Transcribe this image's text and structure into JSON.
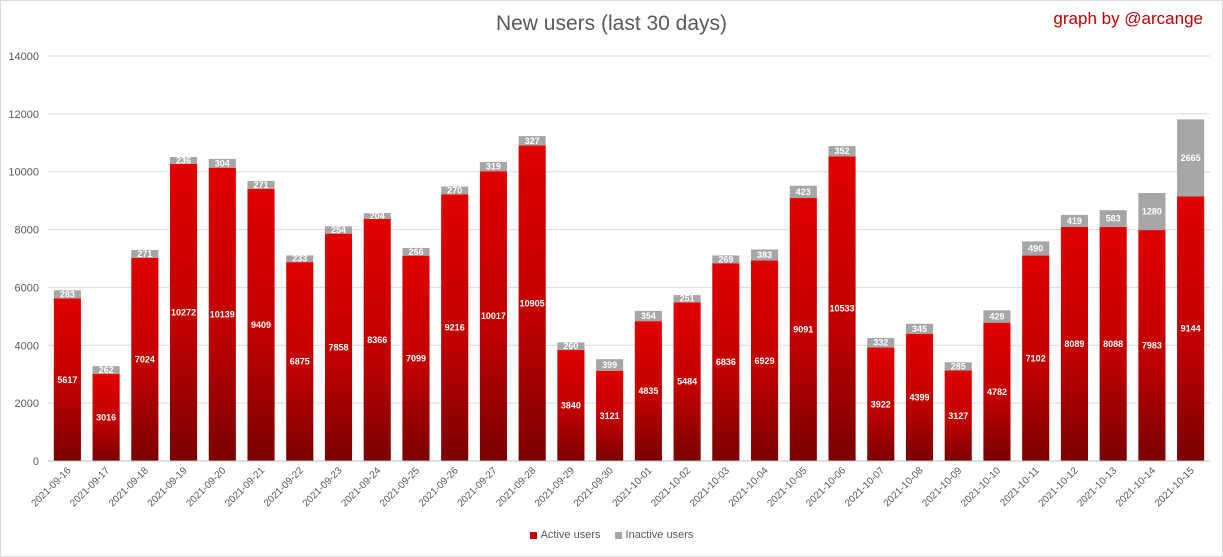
{
  "chart_data": {
    "type": "bar",
    "stacked": true,
    "title": "New users (last 30 days)",
    "credit": "graph by @arcange",
    "xlabel": "",
    "ylabel": "",
    "ylim": [
      0,
      14000
    ],
    "yticks": [
      0,
      2000,
      4000,
      6000,
      8000,
      10000,
      12000,
      14000
    ],
    "grid": true,
    "legend_position": "bottom",
    "categories": [
      "2021-09-16",
      "2021-09-17",
      "2021-09-18",
      "2021-09-19",
      "2021-09-20",
      "2021-09-21",
      "2021-09-22",
      "2021-09-23",
      "2021-09-24",
      "2021-09-25",
      "2021-09-26",
      "2021-09-27",
      "2021-09-28",
      "2021-09-29",
      "2021-09-30",
      "2021-10-01",
      "2021-10-02",
      "2021-10-03",
      "2021-10-04",
      "2021-10-05",
      "2021-10-06",
      "2021-10-07",
      "2021-10-08",
      "2021-10-09",
      "2021-10-10",
      "2021-10-11",
      "2021-10-12",
      "2021-10-13",
      "2021-10-14",
      "2021-10-15"
    ],
    "series": [
      {
        "name": "Active users",
        "color": "#c00000",
        "values": [
          5617,
          3016,
          7024,
          10272,
          10139,
          9409,
          6875,
          7858,
          8366,
          7099,
          9216,
          10017,
          10905,
          3840,
          3121,
          4835,
          5484,
          6836,
          6929,
          9091,
          10533,
          3922,
          4399,
          3127,
          4782,
          7102,
          8089,
          8088,
          7983,
          9144
        ]
      },
      {
        "name": "Inactive users",
        "color": "#a6a6a6",
        "values": [
          283,
          262,
          271,
          236,
          304,
          271,
          233,
          254,
          204,
          266,
          270,
          319,
          327,
          260,
          399,
          354,
          251,
          269,
          383,
          423,
          352,
          332,
          345,
          285,
          429,
          490,
          419,
          583,
          1280,
          2665
        ]
      }
    ]
  }
}
